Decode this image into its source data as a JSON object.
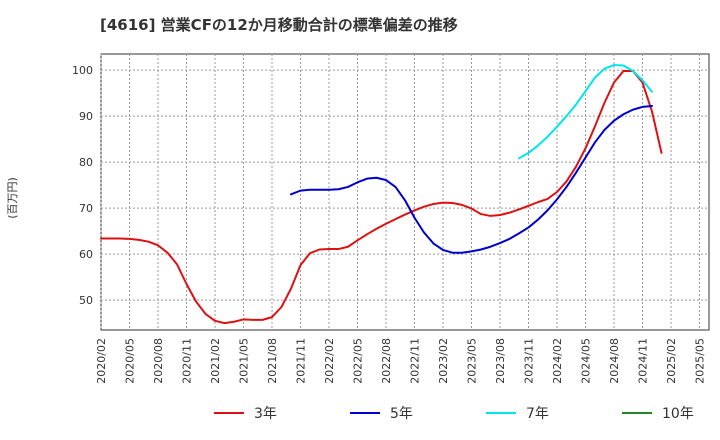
{
  "chart_data": {
    "type": "line",
    "title": "[4616]  営業CFの12か月移動合計の標準偏差の推移",
    "ylabel": "(百万円)",
    "xlabel": "",
    "ylim": [
      43.5,
      103.5
    ],
    "yticks": [
      50,
      60,
      70,
      80,
      90,
      100
    ],
    "x_tick_labels": [
      "2020/02",
      "2020/05",
      "2020/08",
      "2020/11",
      "2021/02",
      "2021/05",
      "2021/08",
      "2021/11",
      "2022/02",
      "2022/05",
      "2022/08",
      "2022/11",
      "2023/02",
      "2023/05",
      "2023/08",
      "2023/11",
      "2024/02",
      "2024/05",
      "2024/08",
      "2024/11",
      "2025/02",
      "2025/05"
    ],
    "x_start": "2020/02",
    "x_months": 64,
    "grid": true,
    "legend_position": "bottom",
    "series": [
      {
        "name": "3年",
        "color": "#dd1111",
        "start": "2020/02",
        "values": [
          63.4,
          63.4,
          63.4,
          63.3,
          63.1,
          62.7,
          61.9,
          60.3,
          57.8,
          53.5,
          49.7,
          47.0,
          45.5,
          45.0,
          45.3,
          45.8,
          45.7,
          45.7,
          46.3,
          48.5,
          52.5,
          57.6,
          60.2,
          61.0,
          61.1,
          61.1,
          61.6,
          63.0,
          64.3,
          65.5,
          66.6,
          67.6,
          68.6,
          69.5,
          70.3,
          70.9,
          71.2,
          71.1,
          70.7,
          69.9,
          68.7,
          68.3,
          68.5,
          69.0,
          69.7,
          70.5,
          71.3,
          72.0,
          73.5,
          75.8,
          79.0,
          83.0,
          87.8,
          92.9,
          97.3,
          99.8,
          99.8,
          97.3,
          91.0,
          82.0
        ]
      },
      {
        "name": "5年",
        "color": "#0000cc",
        "start": "2021/10",
        "values": [
          73.0,
          73.8,
          74.0,
          74.0,
          74.0,
          74.1,
          74.6,
          75.6,
          76.4,
          76.6,
          76.1,
          74.6,
          71.7,
          67.9,
          64.7,
          62.3,
          60.9,
          60.3,
          60.3,
          60.6,
          61.0,
          61.6,
          62.4,
          63.3,
          64.5,
          65.8,
          67.5,
          69.5,
          71.9,
          74.6,
          77.7,
          81.0,
          84.3,
          87.0,
          89.0,
          90.4,
          91.4,
          92.0,
          92.2
        ]
      },
      {
        "name": "7年",
        "color": "#00e5ee",
        "start": "2023/10",
        "values": [
          80.8,
          82.0,
          83.6,
          85.5,
          87.7,
          90.0,
          92.5,
          95.4,
          98.4,
          100.3,
          101.1,
          101.0,
          99.8,
          97.8,
          95.3
        ]
      },
      {
        "name": "10年",
        "color": "#228822",
        "start": "2020/02",
        "values": []
      }
    ]
  }
}
